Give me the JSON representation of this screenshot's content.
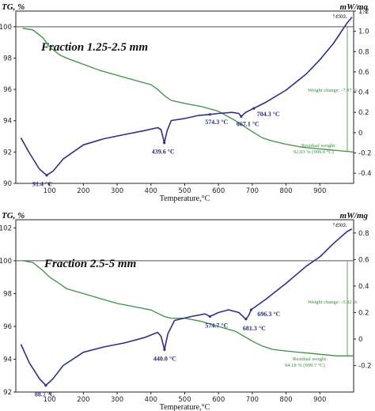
{
  "colors": {
    "tg": "#3f8f3f",
    "dsc": "#2f2f8a",
    "ref": "#555555",
    "axis": "#222222"
  },
  "chart_data": [
    {
      "type": "line",
      "title": "Fraction 1.25-2.5 mm",
      "xlabel": "Temperature,°C",
      "ylabel_left": "TG, %",
      "ylabel_right": "mW/mg",
      "exo_label": "↑exo.",
      "xlim": [
        0,
        1000
      ],
      "ylim_left": [
        90,
        101
      ],
      "ylim_right": [
        -0.5,
        1.2
      ],
      "x_ticks": [
        "100",
        "200",
        "300",
        "400",
        "500",
        "600",
        "700",
        "800",
        "900"
      ],
      "left_ticks": [
        "90",
        "92",
        "94",
        "96",
        "98",
        "100"
      ],
      "right_ticks": [
        "-0.4",
        "-0.2",
        "0",
        "0.2",
        "0.4",
        "0.6",
        "0.8",
        "1.0",
        "1.2"
      ],
      "reference_line": 100,
      "series": [
        {
          "name": "TG, %",
          "axis": "left",
          "x": [
            20,
            50,
            80,
            100,
            130,
            150,
            200,
            250,
            300,
            350,
            400,
            420,
            440,
            460,
            500,
            550,
            600,
            650,
            700,
            730,
            760,
            800,
            850,
            900,
            950,
            1000
          ],
          "y": [
            99.9,
            99.8,
            99.3,
            98.7,
            98.2,
            98.0,
            97.6,
            97.2,
            96.9,
            96.6,
            96.3,
            96.0,
            95.6,
            95.3,
            95.1,
            94.9,
            94.6,
            94.0,
            93.3,
            92.9,
            92.7,
            92.5,
            92.3,
            92.2,
            92.1,
            92.0
          ]
        },
        {
          "name": "DSC, mW/mg",
          "axis": "right",
          "x": [
            15,
            40,
            70,
            91,
            110,
            140,
            200,
            260,
            320,
            380,
            420,
            430,
            439.6,
            448,
            460,
            500,
            540,
            574.3,
            600,
            640,
            660,
            667.1,
            680,
            704.3,
            740,
            800,
            860,
            900,
            940,
            980,
            995
          ],
          "y": [
            -0.05,
            -0.2,
            -0.36,
            -0.42,
            -0.38,
            -0.26,
            -0.12,
            -0.06,
            -0.02,
            0.02,
            0.05,
            0.03,
            -0.1,
            0.02,
            0.12,
            0.14,
            0.17,
            0.18,
            0.19,
            0.2,
            0.19,
            0.16,
            0.2,
            0.24,
            0.3,
            0.42,
            0.58,
            0.72,
            0.88,
            1.08,
            1.14
          ]
        }
      ],
      "peaks": [
        {
          "label": "91.4 °C",
          "x": 91.4,
          "y": -0.42
        },
        {
          "label": "439.6 °C",
          "x": 439.6,
          "y": -0.1
        },
        {
          "label": "574.3 °C",
          "x": 574.3,
          "y": 0.18
        },
        {
          "label": "667.1 °C",
          "x": 667.1,
          "y": 0.16
        },
        {
          "label": "704.3 °C",
          "x": 704.3,
          "y": 0.24
        }
      ],
      "annotations": {
        "weight_change": "Weight change: -7.97 %",
        "residual_weight": "Residual weight:",
        "residual_value": "92.03 % (999.0 °C)"
      }
    },
    {
      "type": "line",
      "title": "Fraction 2.5-5 mm",
      "xlabel": "Temperature,°C",
      "ylabel_left": "TG, %",
      "ylabel_right": "mW/mg",
      "exo_label": "↑exo.",
      "xlim": [
        0,
        1000
      ],
      "ylim_left": [
        92,
        102.5
      ],
      "ylim_right": [
        -0.4,
        0.9
      ],
      "x_ticks": [
        "100",
        "200",
        "300",
        "400",
        "500",
        "600",
        "700",
        "800",
        "900"
      ],
      "left_ticks": [
        "92",
        "94",
        "96",
        "98",
        "100",
        "102"
      ],
      "right_ticks": [
        "-0.2",
        "0",
        "0.2",
        "0.4",
        "0.6",
        "0.8"
      ],
      "reference_line": 100,
      "series": [
        {
          "name": "TG, %",
          "axis": "left",
          "x": [
            20,
            50,
            80,
            100,
            130,
            150,
            200,
            250,
            300,
            350,
            400,
            420,
            440,
            460,
            500,
            550,
            600,
            650,
            700,
            730,
            760,
            800,
            850,
            900,
            950,
            1000
          ],
          "y": [
            100.0,
            99.9,
            99.4,
            99.0,
            98.6,
            98.3,
            98.0,
            97.7,
            97.4,
            97.2,
            97.0,
            96.8,
            96.6,
            96.5,
            96.5,
            96.3,
            96.0,
            95.7,
            95.1,
            94.8,
            94.6,
            94.5,
            94.4,
            94.3,
            94.2,
            94.2
          ]
        },
        {
          "name": "DSC, mW/mg",
          "axis": "right",
          "x": [
            15,
            40,
            70,
            88.7,
            110,
            140,
            200,
            260,
            320,
            380,
            420,
            430,
            440,
            450,
            470,
            520,
            560,
            574.7,
            600,
            630,
            660,
            681.3,
            690,
            696.3,
            740,
            800,
            860,
            900,
            940,
            980,
            995
          ],
          "y": [
            -0.04,
            -0.18,
            -0.3,
            -0.35,
            -0.3,
            -0.2,
            -0.1,
            -0.06,
            -0.03,
            0.01,
            0.05,
            0.02,
            -0.08,
            0.04,
            0.14,
            0.17,
            0.19,
            0.17,
            0.2,
            0.22,
            0.2,
            0.15,
            0.18,
            0.22,
            0.3,
            0.42,
            0.55,
            0.62,
            0.72,
            0.81,
            0.83
          ]
        }
      ],
      "peaks": [
        {
          "label": "88.7 °C",
          "x": 88.7,
          "y": -0.35
        },
        {
          "label": "440.0 °C",
          "x": 440.0,
          "y": -0.08
        },
        {
          "label": "574.7 °C",
          "x": 574.7,
          "y": 0.17
        },
        {
          "label": "681.3 °C",
          "x": 681.3,
          "y": 0.15
        },
        {
          "label": "696.3 °C",
          "x": 696.3,
          "y": 0.22
        }
      ],
      "annotations": {
        "weight_change": "Weight change: -5.82 %",
        "residual_weight": "Residual weight:",
        "residual_value": "94.18 % (999.7 °C)"
      }
    }
  ]
}
